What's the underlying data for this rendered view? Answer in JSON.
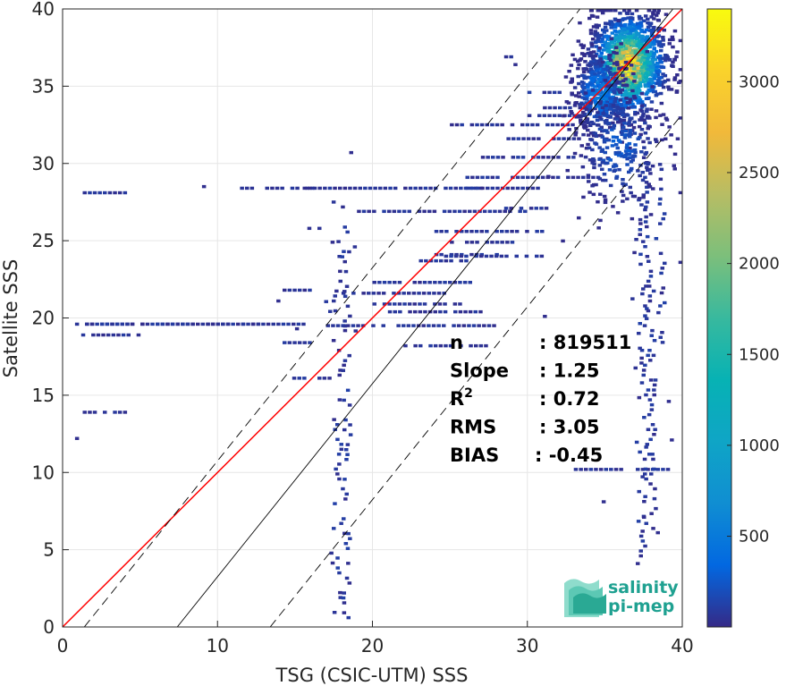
{
  "chart_data": {
    "type": "heatmap",
    "xlabel": "TSG (CSIC-UTM) SSS",
    "ylabel": "Satellite SSS",
    "xlim": [
      0,
      40
    ],
    "ylim": [
      0,
      40
    ],
    "xticks": [
      "0",
      "10",
      "20",
      "30",
      "40"
    ],
    "yticks": [
      "0",
      "5",
      "10",
      "15",
      "20",
      "25",
      "30",
      "35",
      "40"
    ],
    "grid": true,
    "colorbar": {
      "colormap": "parula",
      "range": [
        1,
        3400
      ],
      "ticks": [
        "500",
        "1000",
        "1500",
        "2000",
        "2500",
        "3000"
      ],
      "tick_values": [
        500,
        1000,
        1500,
        2000,
        2500,
        3000
      ]
    },
    "lines": [
      {
        "name": "one-to-one",
        "color": "#ff0000",
        "points": [
          [
            0,
            0
          ],
          [
            40,
            40
          ]
        ]
      },
      {
        "name": "regression",
        "color": "#000000",
        "points": [
          [
            7.4,
            0
          ],
          [
            39.4,
            40
          ]
        ]
      },
      {
        "name": "upper-bound",
        "color": "#000000",
        "dashed": true,
        "points": [
          [
            1.4,
            0
          ],
          [
            33.4,
            40
          ]
        ]
      },
      {
        "name": "lower-bound",
        "color": "#000000",
        "dashed": true,
        "points": [
          [
            13.4,
            0
          ],
          [
            40,
            33.2
          ]
        ]
      }
    ],
    "stats": [
      {
        "label": "n",
        "value": ": 819511"
      },
      {
        "label": "Slope",
        "value": ": 1.25"
      },
      {
        "label": "R",
        "sup": "2",
        "value": ": 0.72"
      },
      {
        "label": "RMS",
        "value": ": 3.05"
      },
      {
        "label": "BIAS",
        "value": ": -0.45"
      }
    ],
    "density_clusters": [
      {
        "cx": 36.4,
        "cy": 36.3,
        "sx": 1.2,
        "sy": 1.6,
        "count": 1300,
        "peak": 3400
      },
      {
        "cx": 34.5,
        "cy": 34.5,
        "sx": 0.9,
        "sy": 1.4,
        "count": 350,
        "peak": 600
      },
      {
        "cx": 35.8,
        "cy": 31.0,
        "sx": 1.6,
        "sy": 2.2,
        "count": 260,
        "peak": 300
      }
    ],
    "streaks": [
      {
        "x0": 1.3,
        "x1": 4.2,
        "y": 28.0
      },
      {
        "x0": 10.8,
        "x1": 16.0,
        "y": 28.3
      },
      {
        "x0": 15.5,
        "x1": 27.0,
        "y": 28.3
      },
      {
        "x0": 26.0,
        "x1": 31.0,
        "y": 28.3
      },
      {
        "x0": 0.8,
        "x1": 12.5,
        "y": 19.5
      },
      {
        "x0": 0.8,
        "x1": 16.0,
        "y": 19.5
      },
      {
        "x0": 17.0,
        "x1": 28.0,
        "y": 19.4
      },
      {
        "x0": 1.3,
        "x1": 4.2,
        "y": 13.8
      },
      {
        "x0": 1.2,
        "x1": 5.0,
        "y": 18.8
      },
      {
        "x0": 15.8,
        "x1": 17.0,
        "y": 25.7
      },
      {
        "x0": 14.2,
        "x1": 16.0,
        "y": 21.7
      },
      {
        "x0": 14.2,
        "x1": 16.0,
        "y": 18.3
      },
      {
        "x0": 14.5,
        "x1": 17.6,
        "y": 16.0
      },
      {
        "x0": 19.0,
        "x1": 30.0,
        "y": 26.8
      },
      {
        "x0": 24.0,
        "x1": 31.0,
        "y": 25.5
      },
      {
        "x0": 25.0,
        "x1": 29.0,
        "y": 24.8
      },
      {
        "x0": 24.0,
        "x1": 28.0,
        "y": 24.0
      },
      {
        "x0": 23.0,
        "x1": 26.0,
        "y": 23.6
      },
      {
        "x0": 24.3,
        "x1": 31.0,
        "y": 23.9
      },
      {
        "x0": 20.0,
        "x1": 27.0,
        "y": 22.2
      },
      {
        "x0": 18.0,
        "x1": 25.0,
        "y": 21.5
      },
      {
        "x0": 20.0,
        "x1": 26.0,
        "y": 20.8
      },
      {
        "x0": 21.0,
        "x1": 27.0,
        "y": 20.3
      },
      {
        "x0": 22.0,
        "x1": 27.5,
        "y": 18.1
      },
      {
        "x0": 26.0,
        "x1": 34.5,
        "y": 29.0
      },
      {
        "x0": 27.0,
        "x1": 33.0,
        "y": 30.3
      },
      {
        "x0": 28.0,
        "x1": 33.5,
        "y": 31.5
      },
      {
        "x0": 30.0,
        "x1": 34.0,
        "y": 33.0
      },
      {
        "x0": 25.0,
        "x1": 33.0,
        "y": 32.4
      },
      {
        "x0": 28.5,
        "x1": 31.5,
        "y": 27.0
      },
      {
        "x0": 37.0,
        "x1": 39.0,
        "y": 10.1
      },
      {
        "x0": 33.0,
        "x1": 36.0,
        "y": 10.1
      },
      {
        "x0": 28.5,
        "x1": 29.3,
        "y": 36.8
      },
      {
        "x0": 30.0,
        "x1": 32.0,
        "y": 34.5
      },
      {
        "x0": 31.0,
        "x1": 34.0,
        "y": 33.5
      }
    ],
    "column_streaks": [
      {
        "x": 17.7,
        "y0": 0.2,
        "y1": 27.6
      },
      {
        "x": 18.2,
        "y0": 0.5,
        "y1": 26.0
      },
      {
        "x": 37.2,
        "y0": 4.5,
        "y1": 30.0
      },
      {
        "x": 38.0,
        "y0": 5.0,
        "y1": 22.0
      },
      {
        "x": 37.6,
        "y0": 9.8,
        "y1": 34.0
      },
      {
        "x": 17.0,
        "y0": 20.0,
        "y1": 22.5
      },
      {
        "x": 38.5,
        "y0": 18.0,
        "y1": 30.0
      }
    ],
    "isolated": [
      [
        0.8,
        12.1
      ],
      [
        9.0,
        28.4
      ],
      [
        29.1,
        36.3
      ],
      [
        18.5,
        30.6
      ],
      [
        39.0,
        14.5
      ],
      [
        39.2,
        12.0
      ],
      [
        34.8,
        8.0
      ],
      [
        37.4,
        7.0
      ],
      [
        38.3,
        6.0
      ],
      [
        37.0,
        4.0
      ],
      [
        13.8,
        21.0
      ],
      [
        17.3,
        24.8
      ],
      [
        15.0,
        19.2
      ],
      [
        40.0,
        23.5
      ],
      [
        31.0,
        20.0
      ]
    ]
  },
  "logo": {
    "line1": "salinity",
    "line2": "pi-mep"
  }
}
